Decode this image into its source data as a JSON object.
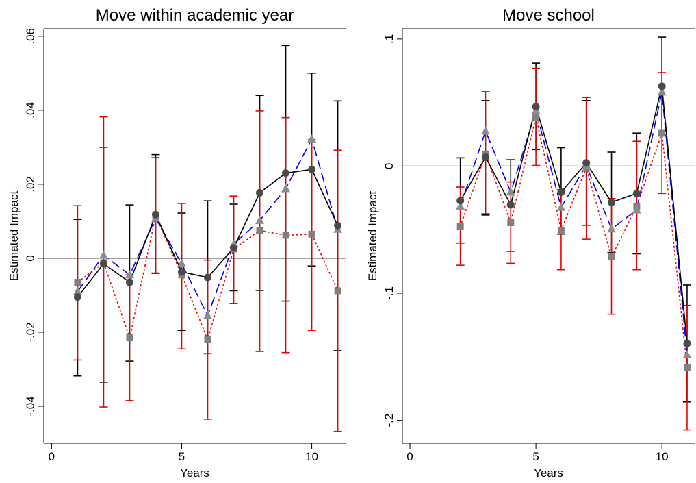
{
  "chart_data": [
    {
      "type": "line",
      "title": "Move within academic year",
      "xlabel": "Years",
      "ylabel": "Estimated Impact",
      "xlim": [
        -0.3,
        11.3
      ],
      "ylim": [
        -0.05,
        0.062
      ],
      "xticks": [
        0,
        5,
        10
      ],
      "xtick_labels": [
        "0",
        "5",
        "10"
      ],
      "yticks": [
        -0.04,
        -0.02,
        0,
        0.02,
        0.04,
        0.06
      ],
      "ytick_labels": [
        "-.04",
        "-.02",
        "0",
        ".02",
        ".04",
        ".06"
      ],
      "reference_line": 0,
      "x": [
        1,
        2,
        3,
        4,
        5,
        6,
        7,
        8,
        9,
        10,
        11
      ],
      "series": [
        {
          "style": "solid",
          "color": "#000000",
          "marker": "circle",
          "marker_color": "#4a4a4a",
          "values": [
            -0.0105,
            -0.0015,
            -0.0065,
            0.0118,
            -0.0037,
            -0.0052,
            0.0028,
            0.0177,
            0.023,
            0.024,
            0.0088
          ],
          "ci_low": [
            -0.0318,
            -0.0335,
            -0.0278,
            -0.0041,
            -0.0195,
            -0.0258,
            -0.0088,
            -0.0087,
            -0.0116,
            -0.0021,
            -0.025
          ],
          "ci_high": [
            0.0105,
            0.03,
            0.0144,
            0.028,
            0.0122,
            0.0155,
            0.0146,
            0.044,
            0.0575,
            0.05,
            0.0425
          ],
          "ci_color": "#000000"
        },
        {
          "style": "dashed",
          "color": "#0000ee",
          "marker": "triangle",
          "marker_color": "#8c8c8c",
          "values": [
            -0.009,
            0.0008,
            -0.0045,
            0.0108,
            -0.0015,
            -0.0155,
            0.0038,
            0.0102,
            0.0188,
            0.0322,
            0.0078
          ]
        },
        {
          "style": "dotted",
          "color": "#ee0000",
          "marker": "square",
          "marker_color": "#808080",
          "values": [
            -0.0065,
            -0.0012,
            -0.0215,
            0.0115,
            -0.0045,
            -0.022,
            0.0025,
            0.0075,
            0.0062,
            0.0065,
            -0.0088
          ],
          "ci_low": [
            -0.0275,
            -0.0402,
            -0.0385,
            -0.004,
            -0.0245,
            -0.0435,
            -0.0122,
            -0.0252,
            -0.0255,
            -0.0195,
            -0.0468
          ],
          "ci_high": [
            0.0142,
            0.0382,
            -0.0045,
            0.0272,
            0.0148,
            -0.0005,
            0.0168,
            0.0398,
            0.038,
            0.032,
            0.0292
          ],
          "ci_color": "#ee0000"
        }
      ]
    },
    {
      "type": "line",
      "title": "Move school",
      "xlabel": "Years",
      "ylabel": "Estimated Impact",
      "xlim": [
        -0.3,
        11.3
      ],
      "ylim": [
        -0.218,
        0.108
      ],
      "xticks": [
        0,
        5,
        10
      ],
      "xtick_labels": [
        "0",
        "5",
        "10"
      ],
      "yticks": [
        -0.2,
        -0.1,
        0,
        0.1
      ],
      "ytick_labels": [
        "-.2",
        "-.1",
        "0",
        ".1"
      ],
      "reference_line": 0,
      "x": [
        2,
        3,
        4,
        5,
        6,
        7,
        8,
        9,
        10,
        11
      ],
      "series": [
        {
          "style": "solid",
          "color": "#000000",
          "marker": "circle",
          "marker_color": "#4a4a4a",
          "values": [
            -0.0272,
            0.007,
            -0.0305,
            0.0468,
            -0.0205,
            0.0025,
            -0.0285,
            -0.0215,
            0.0628,
            -0.1395
          ],
          "ci_low": [
            -0.0605,
            -0.0385,
            -0.067,
            0.013,
            -0.0535,
            -0.0465,
            -0.068,
            -0.069,
            0.0245,
            -0.1855
          ],
          "ci_high": [
            0.0065,
            0.0515,
            0.005,
            0.081,
            0.0145,
            0.0515,
            0.011,
            0.026,
            0.1015,
            -0.0935
          ],
          "ci_color": "#000000"
        },
        {
          "style": "dashed",
          "color": "#0000ee",
          "marker": "triangle",
          "marker_color": "#8c8c8c",
          "values": [
            -0.0315,
            0.0275,
            -0.0205,
            0.0435,
            -0.0325,
            0.0005,
            -0.0495,
            -0.0345,
            0.0582,
            -0.1485
          ]
        },
        {
          "style": "dotted",
          "color": "#ee0000",
          "marker": "square",
          "marker_color": "#808080",
          "values": [
            -0.0475,
            0.0095,
            -0.0445,
            0.0385,
            -0.0505,
            -0.0015,
            -0.0715,
            -0.0315,
            0.0258,
            -0.1585
          ],
          "ci_low": [
            -0.078,
            -0.0375,
            -0.0765,
            0.0005,
            -0.0815,
            -0.0575,
            -0.1165,
            -0.0815,
            -0.0215,
            -0.2075
          ],
          "ci_high": [
            -0.0165,
            0.0585,
            -0.0125,
            0.077,
            -0.0185,
            0.054,
            -0.0255,
            0.0195,
            0.0735,
            -0.1095
          ],
          "ci_color": "#ee0000"
        }
      ]
    }
  ]
}
